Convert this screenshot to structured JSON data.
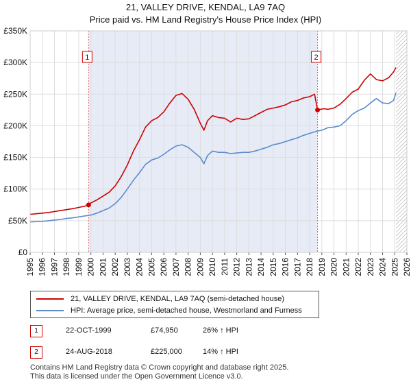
{
  "title_line1": "21, VALLEY DRIVE, KENDAL, LA9 7AQ",
  "title_line2": "Price paid vs. HM Land Registry's House Price Index (HPI)",
  "chart_data": {
    "type": "line",
    "x_ticks": [
      "1995",
      "1996",
      "1997",
      "1998",
      "1999",
      "2000",
      "2001",
      "2002",
      "2003",
      "2004",
      "2005",
      "2006",
      "2007",
      "2008",
      "2009",
      "2010",
      "2011",
      "2012",
      "2013",
      "2014",
      "2015",
      "2016",
      "2017",
      "2018",
      "2019",
      "2020",
      "2021",
      "2022",
      "2023",
      "2024",
      "2025",
      "2026"
    ],
    "y_ticks": [
      {
        "value": 0,
        "label": "£0"
      },
      {
        "value": 50000,
        "label": "£50K"
      },
      {
        "value": 100000,
        "label": "£100K"
      },
      {
        "value": 150000,
        "label": "£150K"
      },
      {
        "value": 200000,
        "label": "£200K"
      },
      {
        "value": 250000,
        "label": "£250K"
      },
      {
        "value": 300000,
        "label": "£300K"
      },
      {
        "value": 350000,
        "label": "£350K"
      }
    ],
    "xlim": [
      1995,
      2026
    ],
    "ylim": [
      0,
      350000
    ],
    "shaded_span": [
      1999.81,
      2018.65
    ],
    "hatched_from": 2025.1,
    "series": [
      {
        "name": "21, VALLEY DRIVE, KENDAL, LA9 7AQ (semi-detached house)",
        "color": "#cc0000",
        "x": [
          1995.0,
          1995.5,
          1996.0,
          1996.5,
          1997.0,
          1997.5,
          1998.0,
          1998.5,
          1999.0,
          1999.5,
          1999.81,
          2000.0,
          2000.5,
          2001.0,
          2001.5,
          2002.0,
          2002.5,
          2003.0,
          2003.5,
          2004.0,
          2004.5,
          2005.0,
          2005.5,
          2006.0,
          2006.5,
          2007.0,
          2007.5,
          2008.0,
          2008.5,
          2009.0,
          2009.3,
          2009.6,
          2010.0,
          2010.5,
          2011.0,
          2011.5,
          2012.0,
          2012.5,
          2013.0,
          2013.5,
          2014.0,
          2014.5,
          2015.0,
          2015.5,
          2016.0,
          2016.5,
          2017.0,
          2017.5,
          2018.0,
          2018.4,
          2018.65,
          2018.9,
          2019.2,
          2019.5,
          2020.0,
          2020.5,
          2021.0,
          2021.5,
          2022.0,
          2022.5,
          2023.0,
          2023.5,
          2024.0,
          2024.5,
          2024.9,
          2025.1
        ],
        "y": [
          60000,
          61000,
          62000,
          63000,
          64500,
          66000,
          67500,
          69000,
          71000,
          73000,
          74950,
          78000,
          83000,
          89000,
          95000,
          105000,
          120000,
          138000,
          160000,
          178000,
          198000,
          208000,
          213000,
          222000,
          236000,
          248000,
          251000,
          242000,
          226000,
          204000,
          193000,
          208000,
          216000,
          213000,
          212000,
          206000,
          212000,
          210000,
          211000,
          216000,
          221000,
          226000,
          228000,
          230000,
          233000,
          238000,
          240000,
          244000,
          246000,
          250000,
          225000,
          226000,
          227000,
          226000,
          228000,
          234000,
          243000,
          253000,
          258000,
          272000,
          282000,
          273000,
          271000,
          276000,
          285000,
          292000
        ]
      },
      {
        "name": "HPI: Average price, semi-detached house, Westmorland and Furness",
        "color": "#5b8bc9",
        "x": [
          1995.0,
          1995.5,
          1996.0,
          1996.5,
          1997.0,
          1997.5,
          1998.0,
          1998.5,
          1999.0,
          1999.5,
          2000.0,
          2000.5,
          2001.0,
          2001.5,
          2002.0,
          2002.5,
          2003.0,
          2003.5,
          2004.0,
          2004.5,
          2005.0,
          2005.5,
          2006.0,
          2006.5,
          2007.0,
          2007.5,
          2008.0,
          2008.5,
          2009.0,
          2009.3,
          2009.6,
          2010.0,
          2010.5,
          2011.0,
          2011.5,
          2012.0,
          2012.5,
          2013.0,
          2013.5,
          2014.0,
          2014.5,
          2015.0,
          2015.5,
          2016.0,
          2016.5,
          2017.0,
          2017.5,
          2018.0,
          2018.5,
          2019.0,
          2019.5,
          2020.0,
          2020.5,
          2021.0,
          2021.5,
          2022.0,
          2022.5,
          2023.0,
          2023.5,
          2024.0,
          2024.5,
          2024.9,
          2025.1
        ],
        "y": [
          48000,
          48500,
          49000,
          50000,
          51000,
          52000,
          53500,
          54500,
          56000,
          57500,
          59000,
          62000,
          66000,
          70000,
          77000,
          87000,
          100000,
          114000,
          126000,
          139000,
          146000,
          149000,
          155000,
          162000,
          168000,
          170000,
          166000,
          158000,
          150000,
          140000,
          153000,
          160000,
          158000,
          158000,
          156000,
          157000,
          158000,
          158000,
          160000,
          163000,
          166000,
          170000,
          172000,
          175000,
          178000,
          181000,
          185000,
          188000,
          191000,
          193000,
          197000,
          198000,
          200000,
          208000,
          218000,
          224000,
          228000,
          236000,
          243000,
          236000,
          235000,
          240000,
          252000
        ]
      }
    ],
    "markers": [
      {
        "label": "1",
        "x": 1999.81,
        "y": 74950
      },
      {
        "label": "2",
        "x": 2018.65,
        "y": 225000
      }
    ]
  },
  "legend": {
    "series1": "21, VALLEY DRIVE, KENDAL, LA9 7AQ (semi-detached house)",
    "series2": "HPI: Average price, semi-detached house, Westmorland and Furness"
  },
  "transactions": [
    {
      "num": "1",
      "date": "22-OCT-1999",
      "price": "£74,950",
      "hpi": "26% ↑ HPI"
    },
    {
      "num": "2",
      "date": "24-AUG-2018",
      "price": "£225,000",
      "hpi": "14% ↑ HPI"
    }
  ],
  "footer_line1": "Contains HM Land Registry data © Crown copyright and database right 2025.",
  "footer_line2": "This data is licensed under the Open Government Licence v3.0."
}
